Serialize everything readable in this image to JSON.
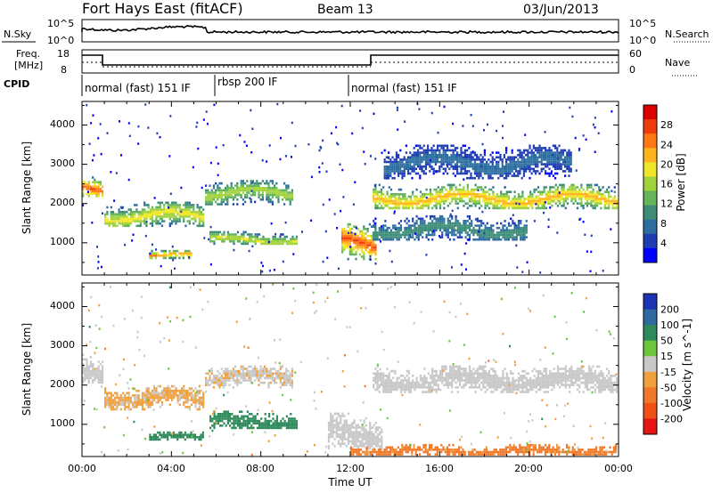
{
  "header": {
    "station": "Fort Hays East (fitACF)",
    "beam": "Beam 13",
    "date": "03/Jun/2013"
  },
  "top_panels": {
    "nsky_label": "N.Sky",
    "nsky_ticks": [
      "10^5",
      "10^0"
    ],
    "nsearch_label": "N.Search",
    "nsearch_ticks": [
      "10^5",
      "10^0"
    ],
    "freq_label": "Freq.",
    "freq_unit": "[MHz]",
    "freq_ticks": [
      "18",
      "8"
    ],
    "nave_label": "Nave",
    "nave_ticks": [
      "60",
      "0"
    ],
    "cpid_label": "CPID",
    "cpid_segments": [
      {
        "label": "normal (fast) 151 IF",
        "start": 0,
        "end": 6
      },
      {
        "label": "rbsp 200 IF",
        "start": 6,
        "end": 12
      },
      {
        "label": "normal (fast) 151 IF",
        "start": 12,
        "end": 24
      }
    ]
  },
  "chart_data": [
    {
      "type": "heatmap",
      "title": "",
      "xlabel": "Time UT",
      "ylabel": "Slant Range [km]",
      "xlim": [
        0,
        24
      ],
      "ylim": [
        180,
        4600
      ],
      "x_ticks": [
        "00:00",
        "04:00",
        "08:00",
        "12:00",
        "16:00",
        "20:00",
        "00:00"
      ],
      "y_ticks": [
        "1000",
        "2000",
        "3000",
        "4000"
      ],
      "colorbar": {
        "label": "Power [dB]",
        "ticks": [
          "4",
          "8",
          "12",
          "16",
          "20",
          "24",
          "28"
        ],
        "range": [
          0,
          30
        ],
        "colors": [
          "#0000ff",
          "#1e3cb4",
          "#2d6ea0",
          "#3c8c78",
          "#64b45a",
          "#a0d23c",
          "#f0e628",
          "#ffb41e",
          "#ff7814",
          "#f03c0a",
          "#dc0000"
        ]
      },
      "echo_bands": [
        {
          "t": [
            0.0,
            1.0
          ],
          "range": [
            2150,
            2750
          ],
          "value": 22
        },
        {
          "t": [
            1.0,
            5.5
          ],
          "range": [
            1350,
            2050
          ],
          "value": 16
        },
        {
          "t": [
            5.5,
            9.5
          ],
          "range": [
            1950,
            2600
          ],
          "value": 14
        },
        {
          "t": [
            3.0,
            5.0
          ],
          "range": [
            580,
            820
          ],
          "value": 20
        },
        {
          "t": [
            5.7,
            9.7
          ],
          "range": [
            900,
            1300
          ],
          "value": 15
        },
        {
          "t": [
            11.6,
            13.2
          ],
          "range": [
            500,
            1500
          ],
          "value": 22
        },
        {
          "t": [
            13.0,
            24.0
          ],
          "range": [
            1800,
            2500
          ],
          "value": 18
        },
        {
          "t": [
            13.0,
            20.0
          ],
          "range": [
            1000,
            1700
          ],
          "value": 9
        },
        {
          "t": [
            13.5,
            22.0
          ],
          "range": [
            2600,
            3500
          ],
          "value": 6
        }
      ]
    },
    {
      "type": "heatmap",
      "title": "",
      "xlabel": "Time UT",
      "ylabel": "Slant Range [km]",
      "xlim": [
        0,
        24
      ],
      "ylim": [
        180,
        4600
      ],
      "x_ticks": [
        "00:00",
        "04:00",
        "08:00",
        "12:00",
        "16:00",
        "20:00",
        "00:00"
      ],
      "y_ticks": [
        "1000",
        "2000",
        "3000",
        "4000"
      ],
      "colorbar": {
        "label": "Velocity [m s^-1]",
        "ticks": [
          "200",
          "100",
          "50",
          "15",
          "-15",
          "-50",
          "-100",
          "-200"
        ],
        "colors": [
          "#1a32b4",
          "#2c6aa0",
          "#2e8a5a",
          "#6cc83a",
          "#c8c8c8",
          "#f0a03c",
          "#f07828",
          "#f05014",
          "#e81414"
        ]
      },
      "echo_bands": [
        {
          "t": [
            0.0,
            1.0
          ],
          "range": [
            2000,
            2800
          ],
          "value": 0
        },
        {
          "t": [
            1.0,
            5.5
          ],
          "range": [
            1350,
            2000
          ],
          "value": -20
        },
        {
          "t": [
            5.5,
            9.5
          ],
          "range": [
            1900,
            2500
          ],
          "value": -10
        },
        {
          "t": [
            3.0,
            5.5
          ],
          "range": [
            580,
            820
          ],
          "value": 60
        },
        {
          "t": [
            5.7,
            9.7
          ],
          "range": [
            850,
            1350
          ],
          "value": 55
        },
        {
          "t": [
            11.0,
            13.5
          ],
          "range": [
            300,
            1300
          ],
          "value": -5
        },
        {
          "t": [
            13.0,
            24.0
          ],
          "range": [
            1750,
            2500
          ],
          "value": 0
        },
        {
          "t": [
            12.0,
            24.0
          ],
          "range": [
            180,
            500
          ],
          "value": -40
        }
      ]
    }
  ]
}
